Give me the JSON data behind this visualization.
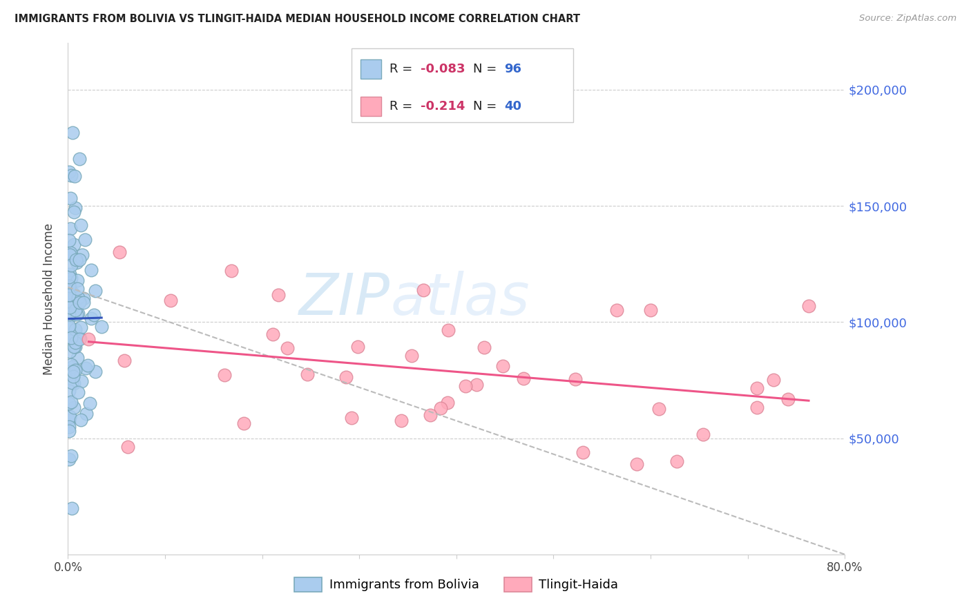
{
  "title": "IMMIGRANTS FROM BOLIVIA VS TLINGIT-HAIDA MEDIAN HOUSEHOLD INCOME CORRELATION CHART",
  "source": "Source: ZipAtlas.com",
  "ylabel": "Median Household Income",
  "xlim": [
    0.0,
    0.8
  ],
  "ylim": [
    0,
    220000
  ],
  "yticks": [
    50000,
    100000,
    150000,
    200000
  ],
  "ytick_labels": [
    "$50,000",
    "$100,000",
    "$150,000",
    "$200,000"
  ],
  "xtick_positions": [
    0.0,
    0.1,
    0.2,
    0.3,
    0.4,
    0.5,
    0.6,
    0.7,
    0.8
  ],
  "xtick_labels": [
    "0.0%",
    "",
    "",
    "",
    "",
    "",
    "",
    "",
    "80.0%"
  ],
  "r_bolivia": -0.083,
  "n_bolivia": 96,
  "r_tlingit": -0.214,
  "n_tlingit": 40,
  "color_bolivia_fill": "#AACCEE",
  "color_bolivia_edge": "#7AAABB",
  "color_tlingit_fill": "#FFAABB",
  "color_tlingit_edge": "#DD8899",
  "color_line_bolivia": "#3355BB",
  "color_line_tlingit": "#EE5588",
  "color_dashed": "#BBBBBB",
  "color_right_labels": "#4169E1",
  "color_title": "#222222",
  "color_source": "#999999",
  "color_legend_r": "#CC3366",
  "color_legend_n": "#3366CC",
  "bottom_legend1": "Immigrants from Bolivia",
  "bottom_legend2": "Tlingit-Haida",
  "watermark_zip": "ZIP",
  "watermark_atlas": "atlas"
}
